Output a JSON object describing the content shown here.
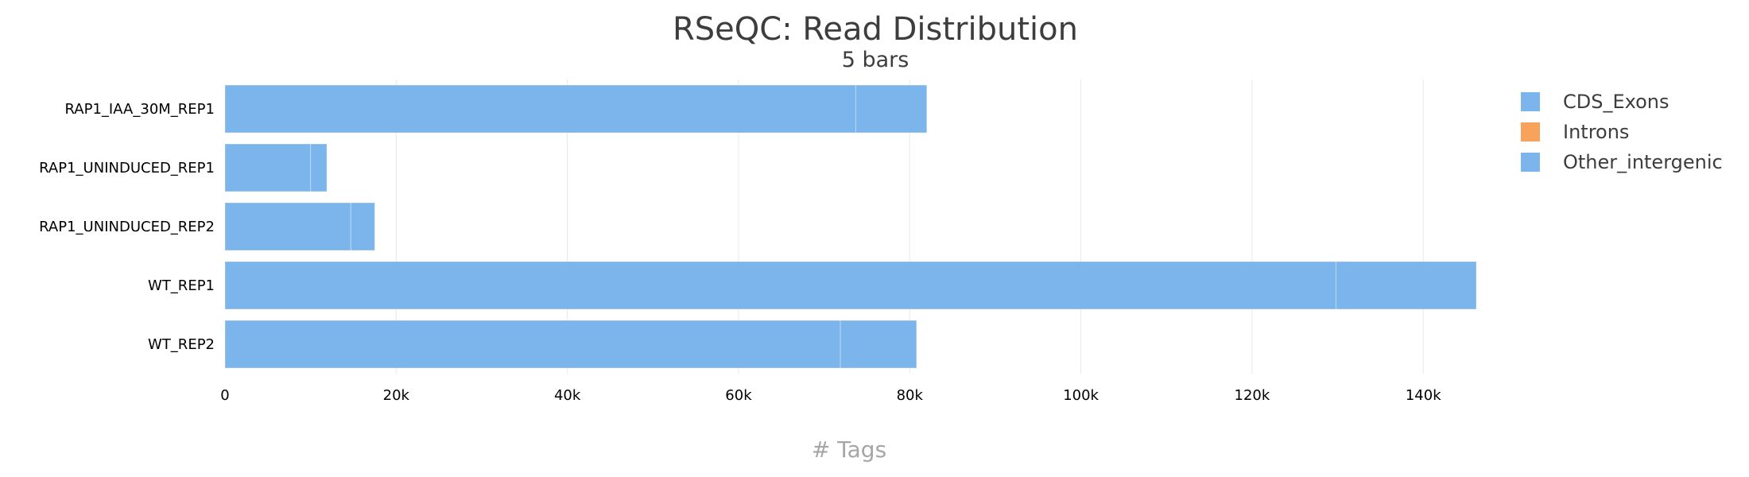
{
  "chart_data": {
    "type": "bar",
    "orientation": "horizontal",
    "stacked": true,
    "title": "RSeQC: Read Distribution",
    "subtitle": "5 bars",
    "xlabel": "# Tags",
    "ylabel": "",
    "xlim": [
      0,
      146200
    ],
    "xticks": [
      0,
      20000,
      40000,
      60000,
      80000,
      100000,
      120000,
      140000
    ],
    "xtick_labels": [
      "0",
      "20k",
      "40k",
      "60k",
      "80k",
      "100k",
      "120k",
      "140k"
    ],
    "grid": "vertical",
    "legend_position": "right",
    "categories": [
      "RAP1_IAA_30M_REP1",
      "RAP1_UNINDUCED_REP1",
      "RAP1_UNINDUCED_REP2",
      "WT_REP1",
      "WT_REP2"
    ],
    "series": [
      {
        "name": "CDS_Exons",
        "color": "#7cb5ec",
        "values": [
          73700,
          10000,
          14700,
          129800,
          71900
        ]
      },
      {
        "name": "Introns",
        "color": "#f7a35c",
        "values": [
          0,
          0,
          0,
          0,
          0
        ]
      },
      {
        "name": "Other_intergenic",
        "color": "#7cb5ec",
        "values": [
          8300,
          1900,
          2800,
          16400,
          8900
        ]
      }
    ]
  }
}
